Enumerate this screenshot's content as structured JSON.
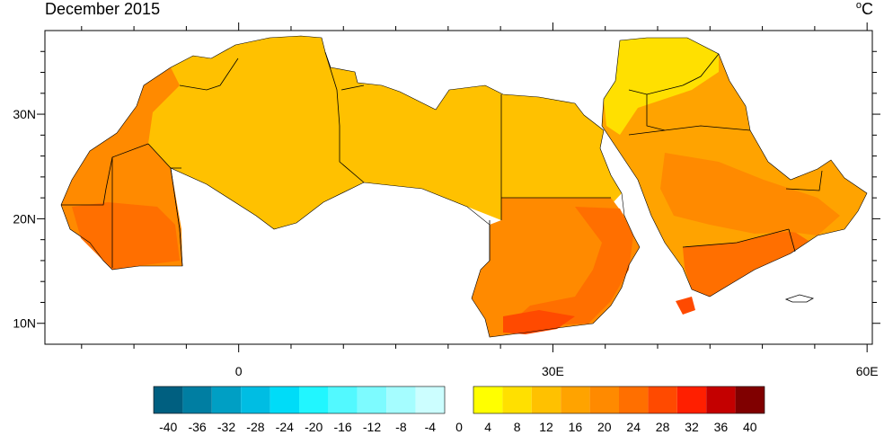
{
  "title": "December 2015",
  "units": {
    "degree_symbol": "o",
    "letter": "C"
  },
  "axes": {
    "x_ticks": [
      {
        "lon": 0,
        "label": "0"
      },
      {
        "lon": 30,
        "label": "30E"
      },
      {
        "lon": 60,
        "label": "60E"
      }
    ],
    "y_ticks": [
      {
        "lat": 30,
        "label": "30N"
      },
      {
        "lat": 20,
        "label": "20N"
      },
      {
        "lat": 10,
        "label": "10N"
      }
    ],
    "lon_range": [
      -18.5,
      60.5
    ],
    "lat_range": [
      8.0,
      38.0
    ]
  },
  "colorbar": {
    "negative_colors": [
      "#005f80",
      "#007ea2",
      "#009fc4",
      "#00bde3",
      "#00dcf8",
      "#21f6ff",
      "#52f9ff",
      "#7dfbff",
      "#a5fdff",
      "#ccfeff"
    ],
    "positive_colors": [
      "#ffff00",
      "#ffe000",
      "#ffc100",
      "#ffa300",
      "#ff8a00",
      "#ff6f00",
      "#ff4a00",
      "#ff1f00",
      "#c40000",
      "#800000"
    ],
    "labels": [
      "-40",
      "-36",
      "-32",
      "-28",
      "-24",
      "-20",
      "-16",
      "-12",
      "-8",
      "-4",
      "0",
      "4",
      "8",
      "12",
      "16",
      "20",
      "24",
      "28",
      "32",
      "36",
      "40"
    ]
  },
  "colors": {
    "north": "#ffc100",
    "mid": "#ffa300",
    "south": "#ff6f00",
    "hot": "#ff4a00",
    "cool": "#ffe000",
    "boundary": "#000000"
  }
}
